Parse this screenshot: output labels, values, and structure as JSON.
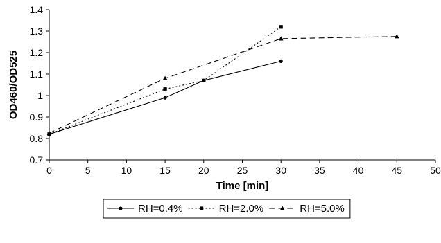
{
  "chart_data": {
    "type": "line",
    "title": "",
    "xlabel": "Time [min]",
    "ylabel": "OD460/OD525",
    "xlim": [
      0,
      50
    ],
    "ylim": [
      0.7,
      1.4
    ],
    "x_ticks": [
      "0",
      "5",
      "10",
      "15",
      "20",
      "25",
      "30",
      "35",
      "40",
      "45",
      "50"
    ],
    "y_ticks": [
      "0.7",
      "0.8",
      "0.9",
      "1",
      "1.1",
      "1.2",
      "1.3",
      "1.4"
    ],
    "grid": false,
    "legend_position": "bottom",
    "series": [
      {
        "name": "RH=0.4%",
        "marker": "circle",
        "line_style": "solid",
        "x": [
          0,
          15,
          20,
          30
        ],
        "y": [
          0.82,
          0.99,
          1.07,
          1.16
        ]
      },
      {
        "name": "RH=2.0%",
        "marker": "square",
        "line_style": "dotted",
        "x": [
          0,
          15,
          20,
          30
        ],
        "y": [
          0.82,
          1.03,
          1.07,
          1.32
        ]
      },
      {
        "name": "RH=5.0%",
        "marker": "triangle",
        "line_style": "dashed",
        "x": [
          0,
          15,
          30,
          45
        ],
        "y": [
          0.825,
          1.08,
          1.265,
          1.275
        ]
      }
    ]
  }
}
